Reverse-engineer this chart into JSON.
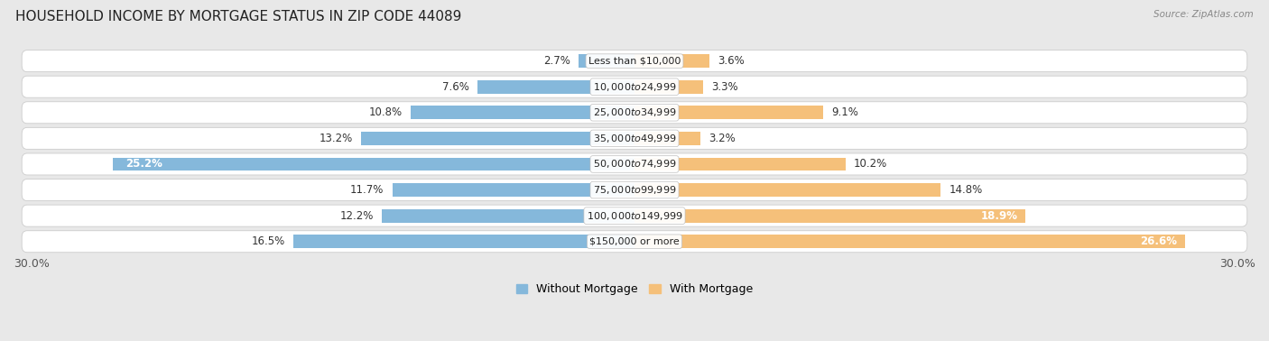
{
  "title": "HOUSEHOLD INCOME BY MORTGAGE STATUS IN ZIP CODE 44089",
  "source": "Source: ZipAtlas.com",
  "categories": [
    "Less than $10,000",
    "$10,000 to $24,999",
    "$25,000 to $34,999",
    "$35,000 to $49,999",
    "$50,000 to $74,999",
    "$75,000 to $99,999",
    "$100,000 to $149,999",
    "$150,000 or more"
  ],
  "without_mortgage": [
    2.7,
    7.6,
    10.8,
    13.2,
    25.2,
    11.7,
    12.2,
    16.5
  ],
  "with_mortgage": [
    3.6,
    3.3,
    9.1,
    3.2,
    10.2,
    14.8,
    18.9,
    26.6
  ],
  "color_without": "#85b8db",
  "color_with": "#f5c07a",
  "xlim": 30.0,
  "legend_labels": [
    "Without Mortgage",
    "With Mortgage"
  ],
  "bg_color": "#e8e8e8",
  "row_bg": "#f2f2f2",
  "title_fontsize": 11,
  "bar_fontsize": 8.5
}
